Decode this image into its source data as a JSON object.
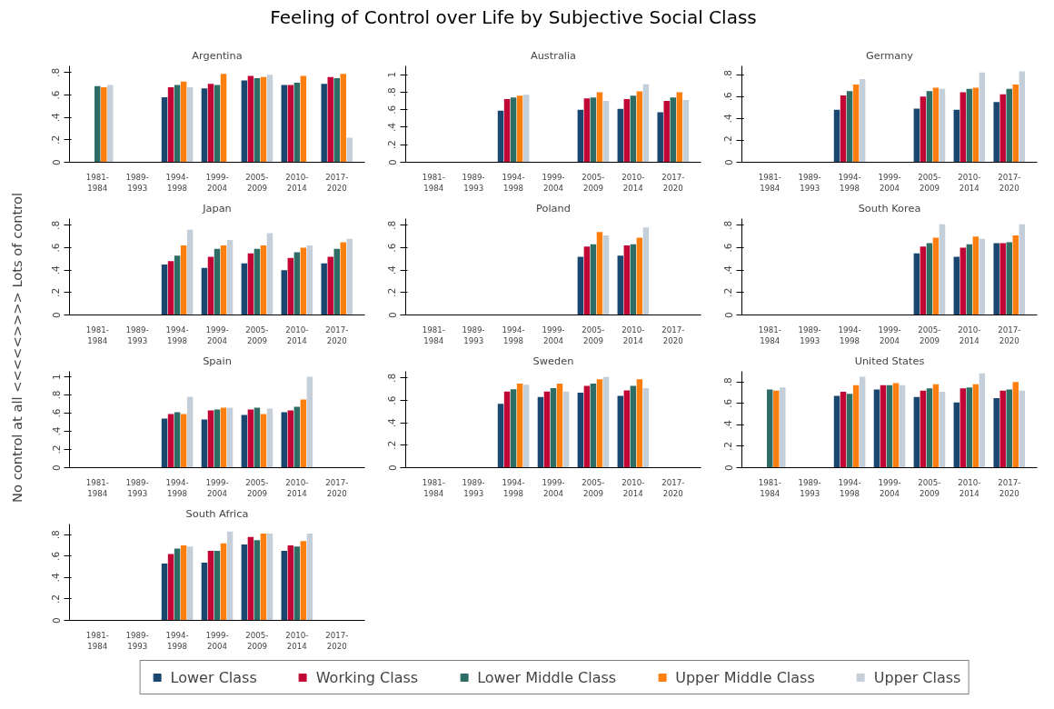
{
  "chart_data": [
    {
      "type": "bar",
      "title": "Feeling of Control over Life by Subjective Social Class",
      "ylabel": "No control at all <<<<<>>>> Lots of control",
      "subtitle": "Argentina",
      "legend": "bottom",
      "categories": [
        "1981-1984",
        "1989-1993",
        "1994-1998",
        "1999-2004",
        "2005-2009",
        "2010-2014",
        "2017-2020"
      ],
      "ylim": [
        0,
        0.86
      ],
      "yticks": [
        0,
        {
          "value": 0.2,
          "label": ".2"
        },
        {
          "value": 0.4,
          "label": ".4"
        },
        {
          "value": 0.6,
          "label": ".6"
        },
        {
          "value": 0.8,
          "label": ".8"
        }
      ],
      "grid": false,
      "series": [
        {
          "name": "Lower Class",
          "color": "#1a476f",
          "values": [
            null,
            null,
            0.58,
            0.66,
            0.73,
            0.69,
            0.7
          ]
        },
        {
          "name": "Working Class",
          "color": "#c10534",
          "values": [
            null,
            null,
            0.67,
            0.7,
            0.77,
            0.69,
            0.76
          ]
        },
        {
          "name": "Lower Middle Class",
          "color": "#2d6d66",
          "values": [
            0.68,
            null,
            0.69,
            0.69,
            0.75,
            0.71,
            0.75
          ]
        },
        {
          "name": "Upper Middle Class",
          "color": "#ff7f0e",
          "values": [
            0.67,
            null,
            0.72,
            0.79,
            0.76,
            0.77,
            0.79
          ]
        },
        {
          "name": "Upper Class",
          "color": "#c4cfd9",
          "values": [
            0.69,
            null,
            0.67,
            null,
            0.78,
            null,
            0.22
          ]
        }
      ]
    },
    {
      "type": "bar",
      "subtitle": "Australia",
      "categories": [
        "1981-1984",
        "1989-1993",
        "1994-1998",
        "1999-2004",
        "2005-2009",
        "2010-2014",
        "2017-2020"
      ],
      "ylim": [
        0,
        1.1
      ],
      "yticks": [
        0,
        {
          "value": 0.2,
          "label": ".2"
        },
        {
          "value": 0.4,
          "label": ".4"
        },
        {
          "value": 0.6,
          "label": ".6"
        },
        {
          "value": 0.8,
          "label": ".8"
        },
        1
      ],
      "grid": false,
      "series": [
        {
          "color": "#1a476f",
          "values": [
            null,
            null,
            0.59,
            null,
            0.6,
            0.61,
            0.57
          ]
        },
        {
          "color": "#c10534",
          "values": [
            null,
            null,
            0.72,
            null,
            0.73,
            0.72,
            0.7
          ]
        },
        {
          "color": "#2d6d66",
          "values": [
            null,
            null,
            0.74,
            null,
            0.74,
            0.76,
            0.74
          ]
        },
        {
          "color": "#ff7f0e",
          "values": [
            null,
            null,
            0.76,
            null,
            0.8,
            0.81,
            0.8
          ]
        },
        {
          "color": "#c4cfd9",
          "values": [
            null,
            null,
            0.77,
            null,
            0.7,
            0.89,
            0.71
          ]
        }
      ]
    },
    {
      "type": "bar",
      "subtitle": "Germany",
      "categories": [
        "1981-1984",
        "1989-1993",
        "1994-1998",
        "1999-2004",
        "2005-2009",
        "2010-2014",
        "2017-2020"
      ],
      "ylim": [
        0,
        0.88
      ],
      "yticks": [
        0,
        {
          "value": 0.2,
          "label": ".2"
        },
        {
          "value": 0.4,
          "label": ".4"
        },
        {
          "value": 0.6,
          "label": ".6"
        },
        {
          "value": 0.8,
          "label": ".8"
        }
      ],
      "grid": false,
      "series": [
        {
          "color": "#1a476f",
          "values": [
            null,
            null,
            0.48,
            null,
            0.49,
            0.48,
            0.55
          ]
        },
        {
          "color": "#c10534",
          "values": [
            null,
            null,
            0.61,
            null,
            0.6,
            0.64,
            0.62
          ]
        },
        {
          "color": "#2d6d66",
          "values": [
            null,
            null,
            0.65,
            null,
            0.65,
            0.67,
            0.67
          ]
        },
        {
          "color": "#ff7f0e",
          "values": [
            null,
            null,
            0.71,
            null,
            0.68,
            0.68,
            0.71
          ]
        },
        {
          "color": "#c4cfd9",
          "values": [
            null,
            null,
            0.76,
            null,
            0.67,
            0.82,
            0.83
          ]
        }
      ]
    },
    {
      "type": "bar",
      "subtitle": "Japan",
      "categories": [
        "1981-1984",
        "1989-1993",
        "1994-1998",
        "1999-2004",
        "2005-2009",
        "2010-2014",
        "2017-2020"
      ],
      "ylim": [
        0,
        0.86
      ],
      "yticks": [
        0,
        {
          "value": 0.2,
          "label": ".2"
        },
        {
          "value": 0.4,
          "label": ".4"
        },
        {
          "value": 0.6,
          "label": ".6"
        },
        {
          "value": 0.8,
          "label": ".8"
        }
      ],
      "grid": false,
      "series": [
        {
          "color": "#1a476f",
          "values": [
            null,
            null,
            0.45,
            0.42,
            0.46,
            0.4,
            0.46
          ]
        },
        {
          "color": "#c10534",
          "values": [
            null,
            null,
            0.48,
            0.52,
            0.55,
            0.51,
            0.52
          ]
        },
        {
          "color": "#2d6d66",
          "values": [
            null,
            null,
            0.53,
            0.59,
            0.59,
            0.56,
            0.59
          ]
        },
        {
          "color": "#ff7f0e",
          "values": [
            null,
            null,
            0.62,
            0.62,
            0.62,
            0.6,
            0.65
          ]
        },
        {
          "color": "#c4cfd9",
          "values": [
            null,
            null,
            0.76,
            0.67,
            0.73,
            0.62,
            0.68
          ]
        }
      ]
    },
    {
      "type": "bar",
      "subtitle": "Poland",
      "categories": [
        "1981-1984",
        "1989-1993",
        "1994-1998",
        "1999-2004",
        "2005-2009",
        "2010-2014",
        "2017-2020"
      ],
      "ylim": [
        0,
        0.86
      ],
      "yticks": [
        0,
        {
          "value": 0.2,
          "label": ".2"
        },
        {
          "value": 0.4,
          "label": ".4"
        },
        {
          "value": 0.6,
          "label": ".6"
        },
        {
          "value": 0.8,
          "label": ".8"
        }
      ],
      "grid": false,
      "series": [
        {
          "color": "#1a476f",
          "values": [
            null,
            null,
            null,
            null,
            0.52,
            0.53,
            null
          ]
        },
        {
          "color": "#c10534",
          "values": [
            null,
            null,
            null,
            null,
            0.61,
            0.62,
            null
          ]
        },
        {
          "color": "#2d6d66",
          "values": [
            null,
            null,
            null,
            null,
            0.63,
            0.63,
            null
          ]
        },
        {
          "color": "#ff7f0e",
          "values": [
            null,
            null,
            null,
            null,
            0.74,
            0.69,
            null
          ]
        },
        {
          "color": "#c4cfd9",
          "values": [
            null,
            null,
            null,
            null,
            0.71,
            0.78,
            null
          ]
        }
      ]
    },
    {
      "type": "bar",
      "subtitle": "South Korea",
      "categories": [
        "1981-1984",
        "1989-1993",
        "1994-1998",
        "1999-2004",
        "2005-2009",
        "2010-2014",
        "2017-2020"
      ],
      "ylim": [
        0,
        0.86
      ],
      "yticks": [
        0,
        {
          "value": 0.2,
          "label": ".2"
        },
        {
          "value": 0.4,
          "label": ".4"
        },
        {
          "value": 0.6,
          "label": ".6"
        },
        {
          "value": 0.8,
          "label": ".8"
        }
      ],
      "grid": false,
      "series": [
        {
          "color": "#1a476f",
          "values": [
            null,
            null,
            null,
            null,
            0.55,
            0.52,
            0.64
          ]
        },
        {
          "color": "#c10534",
          "values": [
            null,
            null,
            null,
            null,
            0.61,
            0.6,
            0.64
          ]
        },
        {
          "color": "#2d6d66",
          "values": [
            null,
            null,
            null,
            null,
            0.64,
            0.63,
            0.65
          ]
        },
        {
          "color": "#ff7f0e",
          "values": [
            null,
            null,
            null,
            null,
            0.69,
            0.7,
            0.71
          ]
        },
        {
          "color": "#c4cfd9",
          "values": [
            null,
            null,
            null,
            null,
            0.81,
            0.68,
            0.81
          ]
        }
      ]
    },
    {
      "type": "bar",
      "subtitle": "Spain",
      "categories": [
        "1981-1984",
        "1989-1993",
        "1994-1998",
        "1999-2004",
        "2005-2009",
        "2010-2014",
        "2017-2020"
      ],
      "ylim": [
        0,
        1.06
      ],
      "yticks": [
        0,
        {
          "value": 0.2,
          "label": ".2"
        },
        {
          "value": 0.4,
          "label": ".4"
        },
        {
          "value": 0.6,
          "label": ".6"
        },
        {
          "value": 0.8,
          "label": ".8"
        },
        1
      ],
      "grid": false,
      "series": [
        {
          "color": "#1a476f",
          "values": [
            null,
            null,
            0.54,
            0.53,
            0.58,
            0.61,
            null
          ]
        },
        {
          "color": "#c10534",
          "values": [
            null,
            null,
            0.59,
            0.63,
            0.64,
            0.63,
            null
          ]
        },
        {
          "color": "#2d6d66",
          "values": [
            null,
            null,
            0.61,
            0.64,
            0.66,
            0.67,
            null
          ]
        },
        {
          "color": "#ff7f0e",
          "values": [
            null,
            null,
            0.59,
            0.66,
            0.59,
            0.75,
            null
          ]
        },
        {
          "color": "#c4cfd9",
          "values": [
            null,
            null,
            0.78,
            0.66,
            0.65,
            1.0,
            null
          ]
        }
      ]
    },
    {
      "type": "bar",
      "subtitle": "Sweden",
      "categories": [
        "1981-1984",
        "1989-1993",
        "1994-1998",
        "1999-2004",
        "2005-2009",
        "2010-2014",
        "2017-2020"
      ],
      "ylim": [
        0,
        0.86
      ],
      "yticks": [
        0,
        {
          "value": 0.2,
          "label": ".2"
        },
        {
          "value": 0.4,
          "label": ".4"
        },
        {
          "value": 0.6,
          "label": ".6"
        },
        {
          "value": 0.8,
          "label": ".8"
        }
      ],
      "grid": false,
      "series": [
        {
          "color": "#1a476f",
          "values": [
            null,
            null,
            0.57,
            0.63,
            0.67,
            0.64,
            null
          ]
        },
        {
          "color": "#c10534",
          "values": [
            null,
            null,
            0.68,
            0.68,
            0.73,
            0.69,
            null
          ]
        },
        {
          "color": "#2d6d66",
          "values": [
            null,
            null,
            0.7,
            0.71,
            0.75,
            0.73,
            null
          ]
        },
        {
          "color": "#ff7f0e",
          "values": [
            null,
            null,
            0.75,
            0.75,
            0.79,
            0.79,
            null
          ]
        },
        {
          "color": "#c4cfd9",
          "values": [
            null,
            null,
            0.74,
            0.68,
            0.81,
            0.71,
            null
          ]
        }
      ]
    },
    {
      "type": "bar",
      "subtitle": "United States",
      "categories": [
        "1981-1984",
        "1989-1993",
        "1994-1998",
        "1999-2004",
        "2005-2009",
        "2010-2014",
        "2017-2020"
      ],
      "ylim": [
        0,
        0.9
      ],
      "yticks": [
        0,
        {
          "value": 0.2,
          "label": ".2"
        },
        {
          "value": 0.4,
          "label": ".4"
        },
        {
          "value": 0.6,
          "label": ".6"
        },
        {
          "value": 0.8,
          "label": ".8"
        }
      ],
      "grid": false,
      "series": [
        {
          "color": "#1a476f",
          "values": [
            null,
            null,
            0.67,
            0.73,
            0.66,
            0.61,
            0.65
          ]
        },
        {
          "color": "#c10534",
          "values": [
            null,
            null,
            0.71,
            0.77,
            0.72,
            0.74,
            0.72
          ]
        },
        {
          "color": "#2d6d66",
          "values": [
            0.73,
            null,
            0.69,
            0.77,
            0.74,
            0.75,
            0.73
          ]
        },
        {
          "color": "#ff7f0e",
          "values": [
            0.72,
            null,
            0.77,
            0.79,
            0.78,
            0.78,
            0.8
          ]
        },
        {
          "color": "#c4cfd9",
          "values": [
            0.75,
            null,
            0.85,
            0.77,
            0.71,
            0.88,
            0.72
          ]
        }
      ]
    },
    {
      "type": "bar",
      "subtitle": "South Africa",
      "categories": [
        "1981-1984",
        "1989-1993",
        "1994-1998",
        "1999-2004",
        "2005-2009",
        "2010-2014",
        "2017-2020"
      ],
      "ylim": [
        0,
        0.9
      ],
      "yticks": [
        0,
        {
          "value": 0.2,
          "label": ".2"
        },
        {
          "value": 0.4,
          "label": ".4"
        },
        {
          "value": 0.6,
          "label": ".6"
        },
        {
          "value": 0.8,
          "label": ".8"
        }
      ],
      "grid": false,
      "series": [
        {
          "color": "#1a476f",
          "values": [
            null,
            null,
            0.53,
            0.54,
            0.71,
            0.65,
            null
          ]
        },
        {
          "color": "#c10534",
          "values": [
            null,
            null,
            0.62,
            0.65,
            0.78,
            0.7,
            null
          ]
        },
        {
          "color": "#2d6d66",
          "values": [
            null,
            null,
            0.67,
            0.65,
            0.75,
            0.69,
            null
          ]
        },
        {
          "color": "#ff7f0e",
          "values": [
            null,
            null,
            0.7,
            0.72,
            0.81,
            0.74,
            null
          ]
        },
        {
          "color": "#c4cfd9",
          "values": [
            null,
            null,
            0.69,
            0.83,
            0.81,
            0.81,
            null
          ]
        }
      ]
    }
  ]
}
